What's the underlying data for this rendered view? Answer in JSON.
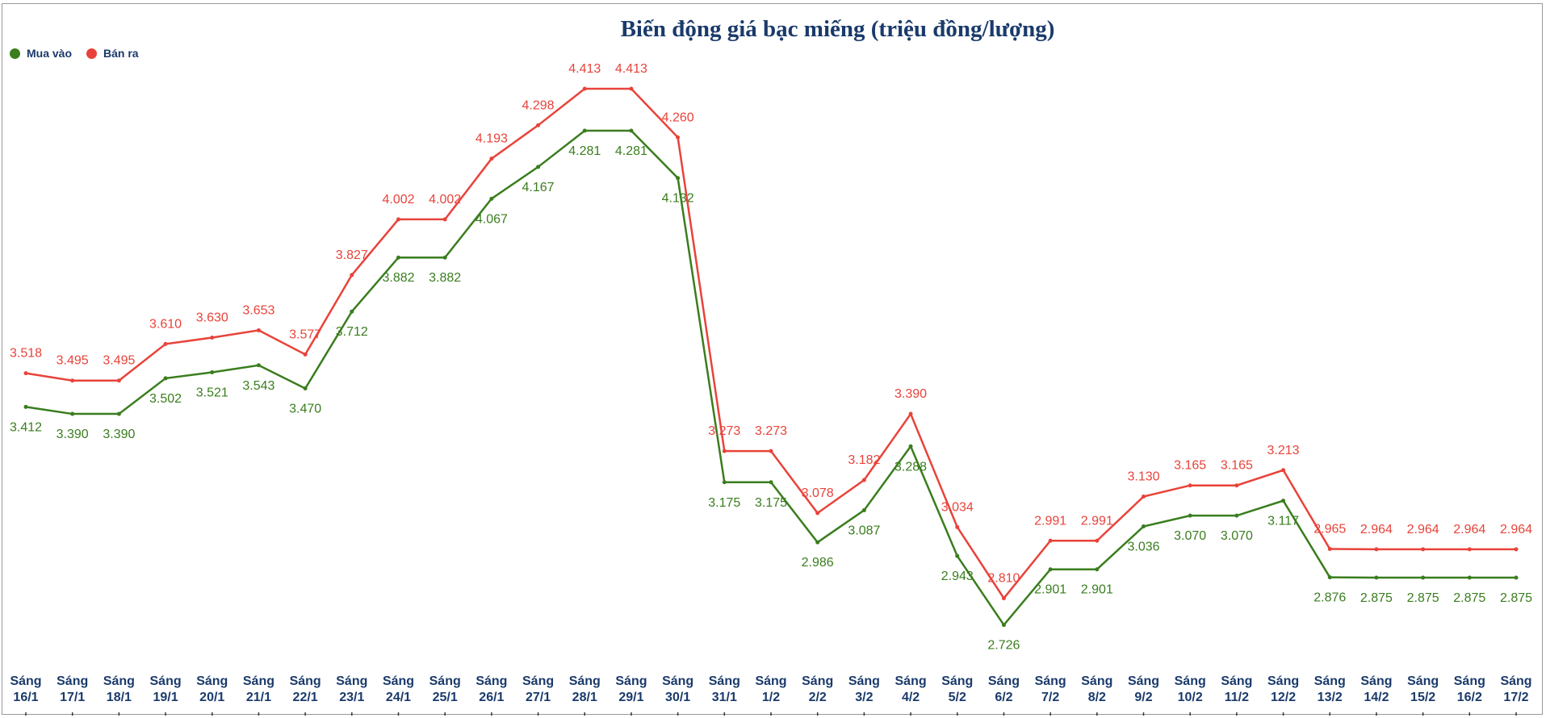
{
  "chart_data": {
    "type": "line",
    "title": "Biến động giá bạc miếng (triệu đồng/lượng)",
    "legend_position": "top-left",
    "grid": false,
    "categories": [
      "Sáng 16/1",
      "Sáng 17/1",
      "Sáng 18/1",
      "Sáng 19/1",
      "Sáng 20/1",
      "Sáng 21/1",
      "Sáng 22/1",
      "Sáng 23/1",
      "Sáng 24/1",
      "Sáng 25/1",
      "Sáng 26/1",
      "Sáng 27/1",
      "Sáng 28/1",
      "Sáng 29/1",
      "Sáng 30/1",
      "Sáng 31/1",
      "Sáng 1/2",
      "Sáng 2/2",
      "Sáng 3/2",
      "Sáng 4/2",
      "Sáng 5/2",
      "Sáng 6/2",
      "Sáng 7/2",
      "Sáng 8/2",
      "Sáng 9/2",
      "Sáng 10/2",
      "Sáng 11/2",
      "Sáng 12/2",
      "Sáng 13/2",
      "Sáng 14/2",
      "Sáng 15/2",
      "Sáng 16/2",
      "Sáng 17/2"
    ],
    "series": [
      {
        "name": "Mua vào",
        "color": "#3a7d1e",
        "values": [
          3.412,
          3.39,
          3.39,
          3.502,
          3.521,
          3.543,
          3.47,
          3.712,
          3.882,
          3.882,
          4.067,
          4.167,
          4.281,
          4.281,
          4.132,
          3.175,
          3.175,
          2.986,
          3.087,
          3.288,
          2.943,
          2.726,
          2.901,
          2.901,
          3.036,
          3.07,
          3.07,
          3.117,
          2.876,
          2.875,
          2.875,
          2.875,
          2.875
        ]
      },
      {
        "name": "Bán ra",
        "color": "#e8433a",
        "values": [
          3.518,
          3.495,
          3.495,
          3.61,
          3.63,
          3.653,
          3.577,
          3.827,
          4.002,
          4.002,
          4.193,
          4.298,
          4.413,
          4.413,
          4.26,
          3.273,
          3.273,
          3.078,
          3.182,
          3.39,
          3.034,
          2.81,
          2.991,
          2.991,
          3.13,
          3.165,
          3.165,
          3.213,
          2.965,
          2.964,
          2.964,
          2.964,
          2.964
        ]
      }
    ]
  }
}
